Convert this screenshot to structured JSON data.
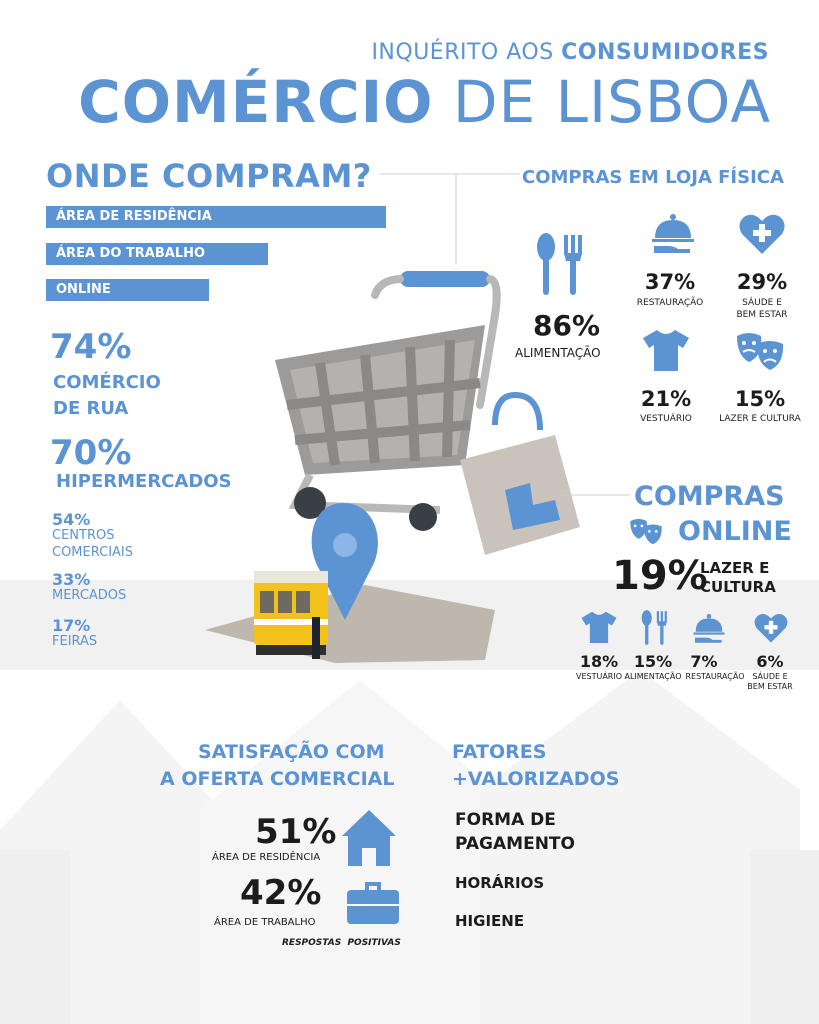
{
  "header": {
    "subtitle_part1": "INQUÉRITO AOS ",
    "subtitle_part2": "CONSUMIDORES",
    "title_part1": "COMÉRCIO",
    "title_part2": " DE LISBOA"
  },
  "where": {
    "title": "ONDE COMPRAM?",
    "bars": [
      {
        "label": "ÁREA DE RESIDÊNCIA"
      },
      {
        "label": "ÁREA DO TRABALHO"
      },
      {
        "label": "ONLINE"
      }
    ],
    "stats": [
      {
        "pct": "74%",
        "label_line1": "COMÉRCIO",
        "label_line2": "DE RUA"
      },
      {
        "pct": "70%",
        "label": "HIPERMERCADOS"
      },
      {
        "pct": "54%",
        "label_line1": "CENTROS",
        "label_line2": "COMERCIAIS"
      },
      {
        "pct": "33%",
        "label": "MERCADOS"
      },
      {
        "pct": "17%",
        "label": "FEIRAS"
      }
    ]
  },
  "physical": {
    "title": "COMPRAS EM LOJA FÍSICA",
    "main": {
      "pct": "86%",
      "label": "ALIMENTAÇÃO",
      "icon": "fork-spoon-icon"
    },
    "items": [
      {
        "pct": "37%",
        "label": "RESTAURAÇÃO",
        "icon": "cloche-icon"
      },
      {
        "pct": "29%",
        "label_line1": "SÁUDE E",
        "label_line2": "BEM ESTAR",
        "icon": "heart-cross-icon"
      },
      {
        "pct": "21%",
        "label": "VESTUÁRIO",
        "icon": "tshirt-icon"
      },
      {
        "pct": "15%",
        "label": "LAZER E CULTURA",
        "icon": "theater-masks-icon"
      }
    ]
  },
  "online": {
    "title_line1": "COMPRAS",
    "title_line2": "ONLINE",
    "main": {
      "pct": "19%",
      "label_line1": "LAZER E",
      "label_line2": "CULTURA"
    },
    "items": [
      {
        "pct": "18%",
        "label": "VESTUÁRIO",
        "icon": "tshirt-icon"
      },
      {
        "pct": "15%",
        "label": "ALIMENTAÇÃO",
        "icon": "fork-spoon-icon"
      },
      {
        "pct": "7%",
        "label": "RESTAURAÇÃO",
        "icon": "cloche-icon"
      },
      {
        "pct": "6%",
        "label_line1": "SÁUDE E",
        "label_line2": "BEM ESTAR",
        "icon": "heart-cross-icon"
      }
    ]
  },
  "satisfaction": {
    "title_line1": "SATISFAÇÃO COM",
    "title_line2": "A OFERTA COMERCIAL",
    "rows": [
      {
        "pct": "51%",
        "label": "ÁREA DE RESIDÊNCIA",
        "icon": "house-icon"
      },
      {
        "pct": "42%",
        "label": "ÁREA DE TRABALHO",
        "icon": "briefcase-icon"
      }
    ],
    "note": "RESPOSTAS  POSITIVAS"
  },
  "factors": {
    "title_line1": "FATORES",
    "title_line2": "+VALORIZADOS",
    "items_line1": "FORMA DE",
    "items_line2": "PAGAMENTO",
    "item2": "HORÁRIOS",
    "item3": "HIGIENE"
  },
  "colors": {
    "accent": "#5b93d3",
    "dark": "#1c1c1c",
    "band": "#f1f1f1"
  }
}
